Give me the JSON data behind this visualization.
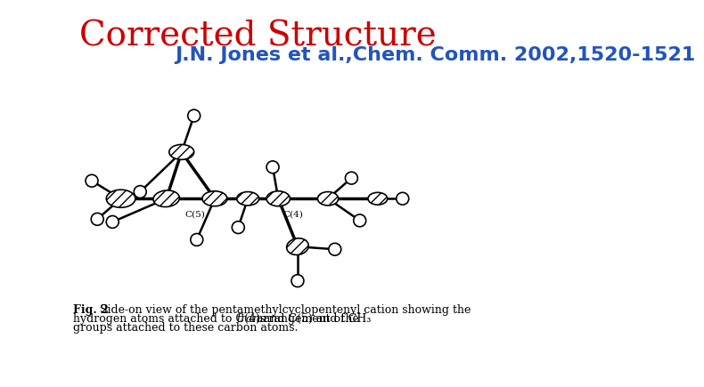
{
  "title": "Corrected Structure",
  "title_color": "#cc0000",
  "title_fontsize": 28,
  "title_font": "serif",
  "subtitle": "J.N. Jones et al.,Chem. Comm. 2002,1520-1521",
  "subtitle_color": "#2255bb",
  "subtitle_fontsize": 16,
  "subtitle_font": "sans-serif",
  "caption_bold": "Fig. 2",
  "caption_rest1": " Side-on view of the pentamethylcyclopentenyl cation showing the",
  "caption_line2a": "hydrogen atoms attached to C(4) and C(5) and the ",
  "caption_line2b": "trans",
  "caption_line2c": " arrangement of CH₃",
  "caption_line3": "groups attached to these carbon atoms.",
  "caption_fontsize": 9,
  "caption_font": "serif",
  "background_color": "#ffffff"
}
